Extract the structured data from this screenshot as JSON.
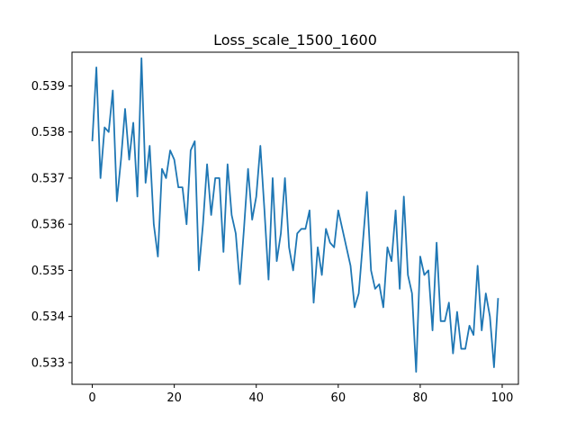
{
  "chart_data": {
    "type": "line",
    "title": "Loss_scale_1500_1600",
    "xlabel": "",
    "ylabel": "",
    "xlim": [
      -4.95,
      103.95
    ],
    "ylim": [
      0.53253,
      0.53973
    ],
    "grid": false,
    "xticks": [
      0,
      20,
      40,
      60,
      80,
      100
    ],
    "xtick_labels": [
      "0",
      "20",
      "40",
      "60",
      "80",
      "100"
    ],
    "yticks": [
      0.533,
      0.534,
      0.535,
      0.536,
      0.537,
      0.538,
      0.539
    ],
    "ytick_labels": [
      "0.533",
      "0.534",
      "0.535",
      "0.536",
      "0.537",
      "0.538",
      "0.539"
    ],
    "series": [
      {
        "color": "#1f77b4",
        "x": [
          0,
          1,
          2,
          3,
          4,
          5,
          6,
          7,
          8,
          9,
          10,
          11,
          12,
          13,
          14,
          15,
          16,
          17,
          18,
          19,
          20,
          21,
          22,
          23,
          24,
          25,
          26,
          27,
          28,
          29,
          30,
          31,
          32,
          33,
          34,
          35,
          36,
          37,
          38,
          39,
          40,
          41,
          42,
          43,
          44,
          45,
          46,
          47,
          48,
          49,
          50,
          51,
          52,
          53,
          54,
          55,
          56,
          57,
          58,
          59,
          60,
          61,
          62,
          63,
          64,
          65,
          66,
          67,
          68,
          69,
          70,
          71,
          72,
          73,
          74,
          75,
          76,
          77,
          78,
          79,
          80,
          81,
          82,
          83,
          84,
          85,
          86,
          87,
          88,
          89,
          90,
          91,
          92,
          93,
          94,
          95,
          96,
          97,
          98,
          99
        ],
        "values": [
          0.5378,
          0.5394,
          0.537,
          0.5381,
          0.538,
          0.5389,
          0.5365,
          0.5374,
          0.5385,
          0.5374,
          0.5382,
          0.5366,
          0.5396,
          0.5369,
          0.5377,
          0.536,
          0.5353,
          0.5372,
          0.537,
          0.5376,
          0.5374,
          0.5368,
          0.5368,
          0.536,
          0.5376,
          0.5378,
          0.535,
          0.536,
          0.5373,
          0.5362,
          0.537,
          0.537,
          0.5354,
          0.5373,
          0.5362,
          0.5358,
          0.5347,
          0.5359,
          0.5372,
          0.5361,
          0.5366,
          0.5377,
          0.5363,
          0.5348,
          0.537,
          0.5352,
          0.5358,
          0.537,
          0.5355,
          0.535,
          0.5358,
          0.5359,
          0.5359,
          0.5363,
          0.5343,
          0.5355,
          0.5349,
          0.5359,
          0.5356,
          0.5355,
          0.5363,
          0.5359,
          0.5355,
          0.5351,
          0.5342,
          0.5345,
          0.5356,
          0.5367,
          0.535,
          0.5346,
          0.5347,
          0.5342,
          0.5355,
          0.5352,
          0.5363,
          0.5346,
          0.5366,
          0.5349,
          0.5345,
          0.5328,
          0.5353,
          0.5349,
          0.535,
          0.5337,
          0.5356,
          0.5339,
          0.5339,
          0.5343,
          0.5332,
          0.5341,
          0.5333,
          0.5333,
          0.5338,
          0.5336,
          0.5351,
          0.5337,
          0.5345,
          0.534,
          0.5329,
          0.5344
        ]
      }
    ]
  }
}
